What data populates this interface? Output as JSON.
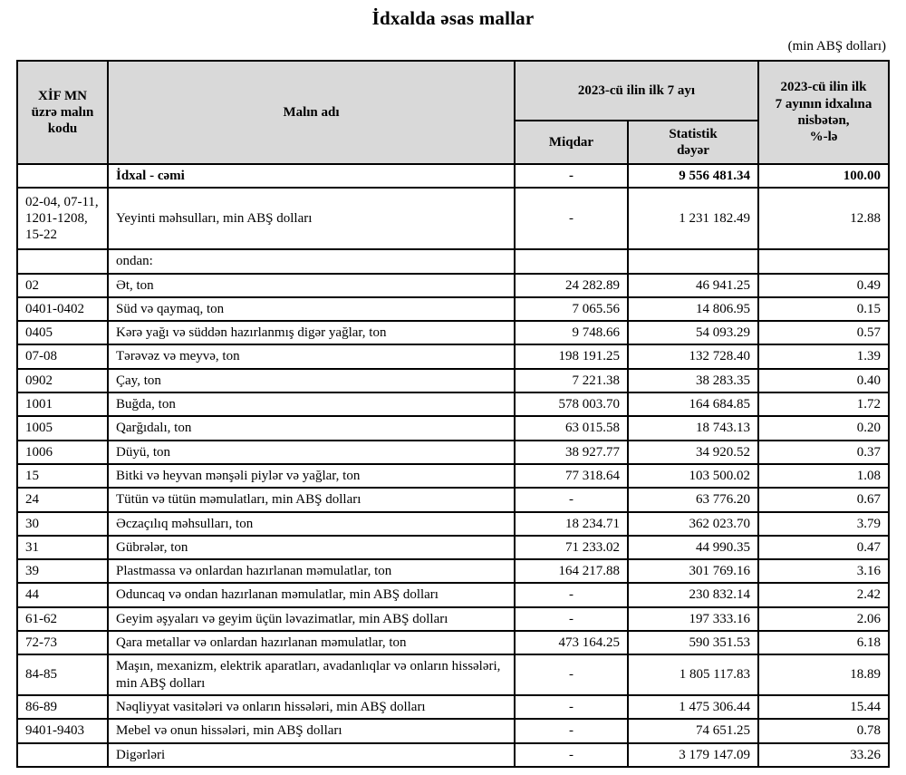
{
  "page": {
    "title": "İdxalda əsas mallar",
    "unit_note": "(min ABŞ dolları)"
  },
  "table": {
    "headers": {
      "code": "XİF MN\nüzrə malın\nkodu",
      "name": "Malın adı",
      "period_group": "2023-cü ilin ilk 7 ayı",
      "quantity": "Miqdar",
      "stat_value": "Statistik\ndəyər",
      "share": "2023-cü ilin ilk\n7 ayının idxalına\nnisbətən,\n%-lə"
    },
    "rows": [
      {
        "code": "",
        "name": "İdxal - cəmi",
        "qty": "-",
        "value": "9 556 481.34",
        "share": "100.00",
        "bold": true,
        "indent": 1
      },
      {
        "code": "02-04, 07-11, 1201-1208, 15-22",
        "name": "Yeyinti məhsulları, min ABŞ dolları",
        "qty": "-",
        "value": "1 231 182.49",
        "share": "12.88",
        "indent": 0,
        "tall": true
      },
      {
        "code": "",
        "name": "ondan:",
        "qty": "",
        "value": "",
        "share": "",
        "indent": 3,
        "ondan": true
      },
      {
        "code": "02",
        "name": "Ət, ton",
        "qty": "24 282.89",
        "value": "46 941.25",
        "share": "0.49",
        "indent": 1
      },
      {
        "code": "0401-0402",
        "name": "Süd və qaymaq, ton",
        "qty": "7 065.56",
        "value": "14 806.95",
        "share": "0.15",
        "indent": 1
      },
      {
        "code": "0405",
        "name": "Kərə yağı və süddən hazırlanmış digər yağlar, ton",
        "qty": "9 748.66",
        "value": "54 093.29",
        "share": "0.57",
        "indent": 1
      },
      {
        "code": "07-08",
        "name": "Tərəvəz və meyvə, ton",
        "qty": "198 191.25",
        "value": "132 728.40",
        "share": "1.39",
        "indent": 1
      },
      {
        "code": "0902",
        "name": "Çay, ton",
        "qty": "7 221.38",
        "value": "38 283.35",
        "share": "0.40",
        "indent": 1
      },
      {
        "code": "1001",
        "name": "Buğda, ton",
        "qty": "578 003.70",
        "value": "164 684.85",
        "share": "1.72",
        "indent": 1
      },
      {
        "code": "1005",
        "name": "Qarğıdalı, ton",
        "qty": "63 015.58",
        "value": "18 743.13",
        "share": "0.20",
        "indent": 1
      },
      {
        "code": "1006",
        "name": "Düyü, ton",
        "qty": "38 927.77",
        "value": "34 920.52",
        "share": "0.37",
        "indent": 1
      },
      {
        "code": "15",
        "name": "Bitki və heyvan mənşəli piylər və yağlar, ton",
        "qty": "77 318.64",
        "value": "103 500.02",
        "share": "1.08",
        "indent": 2
      },
      {
        "code": "24",
        "name": "Tütün və tütün məmulatları, min ABŞ dolları",
        "qty": "-",
        "value": "63 776.20",
        "share": "0.67",
        "indent": 0
      },
      {
        "code": "30",
        "name": "Əczaçılıq məhsulları, ton",
        "qty": "18 234.71",
        "value": "362 023.70",
        "share": "3.79",
        "indent": 0
      },
      {
        "code": "31",
        "name": "Gübrələr, ton",
        "qty": "71 233.02",
        "value": "44 990.35",
        "share": "0.47",
        "indent": 0
      },
      {
        "code": "39",
        "name": "Plastmassa və onlardan hazırlanan məmulatlar, ton",
        "qty": "164 217.88",
        "value": "301 769.16",
        "share": "3.16",
        "indent": 0
      },
      {
        "code": "44",
        "name": "Oduncaq və ondan hazırlanan məmulatlar, min ABŞ dolları",
        "qty": "-",
        "value": "230 832.14",
        "share": "2.42",
        "indent": 0
      },
      {
        "code": "61-62",
        "name": "Geyim əşyaları və geyim üçün ləvazimatlar, min ABŞ dolları",
        "qty": "-",
        "value": "197 333.16",
        "share": "2.06",
        "indent": 0
      },
      {
        "code": "72-73",
        "name": "Qara metallar və onlardan hazırlanan məmulatlar, ton",
        "qty": "473 164.25",
        "value": "590 351.53",
        "share": "6.18",
        "indent": 0
      },
      {
        "code": "84-85",
        "name": "Maşın, mexanizm, elektrik aparatları, avadanlıqlar və onların hissələri, min ABŞ dolları",
        "qty": "-",
        "value": "1 805 117.83",
        "share": "18.89",
        "indent": 0
      },
      {
        "code": "86-89",
        "name": "Nəqliyyat vasitələri və onların hissələri, min ABŞ dolları",
        "qty": "-",
        "value": "1 475 306.44",
        "share": "15.44",
        "indent": 0
      },
      {
        "code": "9401-9403",
        "name": "Mebel və onun hissələri, min ABŞ dolları",
        "qty": "-",
        "value": "74 651.25",
        "share": "0.78",
        "indent": 0
      },
      {
        "code": "",
        "name": "Digərləri",
        "qty": "-",
        "value": "3 179 147.09",
        "share": "33.26",
        "indent": 0
      }
    ]
  }
}
